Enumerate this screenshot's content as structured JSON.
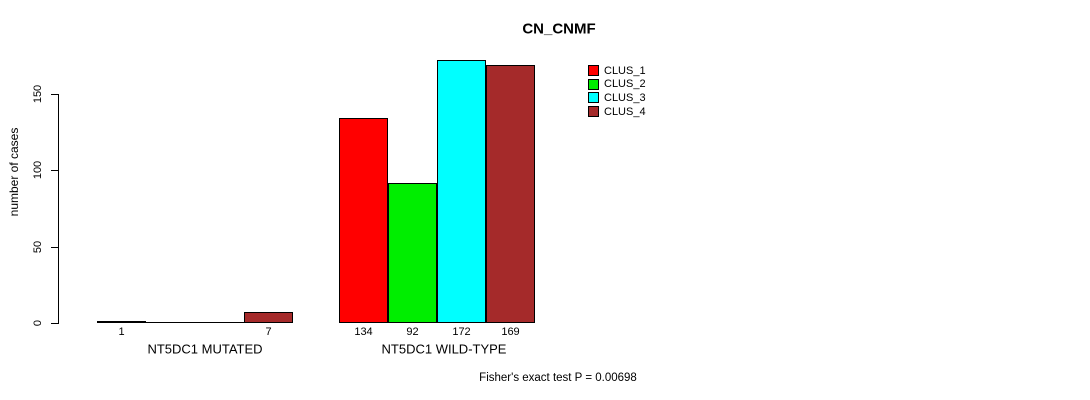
{
  "chart_data": {
    "type": "bar",
    "title": "CN_CNMF",
    "ylabel": "number of cases",
    "xlabel": "",
    "ylim": [
      0,
      172
    ],
    "yticks": [
      0,
      50,
      100,
      150
    ],
    "grid": false,
    "legend_position": "top-right",
    "categories": [
      "NT5DC1 MUTATED",
      "NT5DC1 WILD-TYPE"
    ],
    "series": [
      {
        "name": "CLUS_1",
        "color": "#ff0000",
        "values": [
          1,
          134
        ]
      },
      {
        "name": "CLUS_2",
        "color": "#00ee00",
        "values": [
          0,
          92
        ]
      },
      {
        "name": "CLUS_3",
        "color": "#00ffff",
        "values": [
          0,
          172
        ]
      },
      {
        "name": "CLUS_4",
        "color": "#a52a2a",
        "values": [
          7,
          169
        ]
      }
    ],
    "bar_value_labels": [
      [
        "1",
        "",
        "",
        "7"
      ],
      [
        "134",
        "92",
        "172",
        "169"
      ]
    ],
    "annotation": "Fisher's exact test P = 0.00698"
  }
}
